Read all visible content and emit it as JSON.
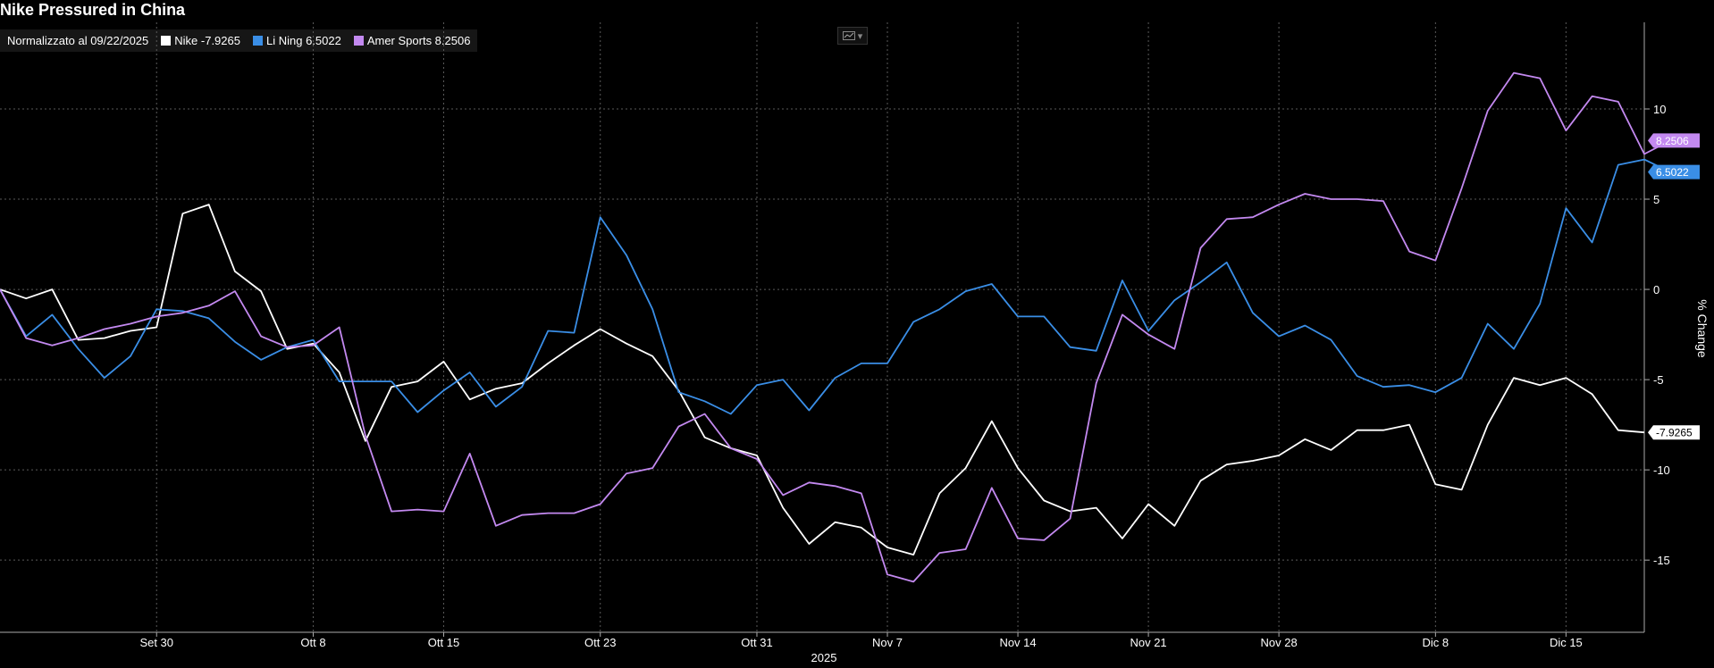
{
  "title": "Nike Pressured in China",
  "legend": {
    "normalized_label": "Normalizzato al 09/22/2025",
    "items": [
      {
        "label": "Nike -7.9265",
        "color": "#ffffff"
      },
      {
        "label": "Li Ning 6.5022",
        "color": "#3a8ee6"
      },
      {
        "label": "Amer Sports 8.2506",
        "color": "#c389f0"
      }
    ]
  },
  "chart_data": {
    "type": "line",
    "title": "Nike Pressured in China",
    "xlabel": "2025",
    "ylabel": "% Change",
    "ylim": [
      -19,
      14.8
    ],
    "y_ticks": [
      10,
      5,
      0,
      -5,
      -10,
      -15
    ],
    "x_ticks": [
      {
        "label": "Set 30",
        "x": 6
      },
      {
        "label": "Ott 8",
        "x": 12
      },
      {
        "label": "Ott 15",
        "x": 17
      },
      {
        "label": "Ott 23",
        "x": 23
      },
      {
        "label": "Ott 31",
        "x": 29
      },
      {
        "label": "Nov 7",
        "x": 34
      },
      {
        "label": "Nov 14",
        "x": 39
      },
      {
        "label": "Nov 21",
        "x": 44
      },
      {
        "label": "Nov 28",
        "x": 49
      },
      {
        "label": "Dic 8",
        "x": 55
      },
      {
        "label": "Dic 15",
        "x": 60
      }
    ],
    "grid": true,
    "series": [
      {
        "name": "Nike",
        "color": "#ffffff",
        "last_label": "-7.9265",
        "values": [
          0,
          -0.5,
          0,
          -2.8,
          -2.7,
          -2.3,
          -2.1,
          4.2,
          4.7,
          1,
          -0.1,
          -3.3,
          -3,
          -4.6,
          -8.4,
          -5.4,
          -5.1,
          -4,
          -6.1,
          -5.5,
          -5.2,
          -4.1,
          -3.1,
          -2.2,
          -3,
          -3.7,
          -5.6,
          -8.2,
          -8.8,
          -9.2,
          -12.1,
          -14.1,
          -12.9,
          -13.2,
          -14.3,
          -14.7,
          -11.3,
          -9.9,
          -7.3,
          -9.9,
          -11.7,
          -12.3,
          -12.1,
          -13.8,
          -11.9,
          -13.1,
          -10.6,
          -9.7,
          -9.5,
          -9.2,
          -8.3,
          -8.9,
          -7.8,
          -7.8,
          -7.5,
          -10.8,
          -11.1,
          -7.5,
          -4.9,
          -5.3,
          -4.9,
          -5.8,
          -7.8,
          -7.9265
        ]
      },
      {
        "name": "Li Ning",
        "color": "#3a8ee6",
        "last_label": "6.5022",
        "values": [
          0,
          -2.6,
          -1.4,
          -3.3,
          -4.9,
          -3.7,
          -1.1,
          -1.2,
          -1.6,
          -2.9,
          -3.9,
          -3.2,
          -2.8,
          -5.1,
          -5.1,
          -5.1,
          -6.8,
          -5.6,
          -4.6,
          -6.5,
          -5.4,
          -2.3,
          -2.4,
          4,
          1.9,
          -1.1,
          -5.7,
          -6.2,
          -6.9,
          -5.3,
          -5,
          -6.7,
          -4.9,
          -4.1,
          -4.1,
          -1.8,
          -1.1,
          -0.1,
          0.3,
          -1.5,
          -1.5,
          -3.2,
          -3.4,
          0.5,
          -2.3,
          -0.6,
          0.4,
          1.5,
          -1.3,
          -2.6,
          -2,
          -2.8,
          -4.8,
          -5.4,
          -5.3,
          -5.7,
          -4.9,
          -1.9,
          -3.3,
          -0.8,
          4.5,
          2.6,
          6.9,
          7.2,
          6.5022
        ]
      },
      {
        "name": "Amer Sports",
        "color": "#c389f0",
        "last_label": "8.2506",
        "values": [
          0,
          -2.7,
          -3.1,
          -2.7,
          -2.2,
          -1.9,
          -1.5,
          -1.3,
          -0.9,
          -0.1,
          -2.6,
          -3.2,
          -3.1,
          -2.1,
          -8.1,
          -12.3,
          -12.2,
          -12.3,
          -9.1,
          -13.1,
          -12.5,
          -12.4,
          -12.4,
          -11.9,
          -10.2,
          -9.9,
          -7.6,
          -6.9,
          -8.8,
          -9.4,
          -11.4,
          -10.7,
          -10.9,
          -11.3,
          -15.8,
          -16.2,
          -14.6,
          -14.4,
          -11,
          -13.8,
          -13.9,
          -12.7,
          -5.2,
          -1.4,
          -2.5,
          -3.3,
          2.3,
          3.9,
          4,
          4.7,
          5.3,
          5,
          5,
          4.9,
          2.1,
          1.6,
          5.6,
          9.9,
          12,
          11.7,
          8.8,
          10.7,
          10.4,
          7.5,
          8.2506
        ]
      }
    ]
  },
  "toolbar": {
    "chart_icon": "line-chart-icon"
  }
}
